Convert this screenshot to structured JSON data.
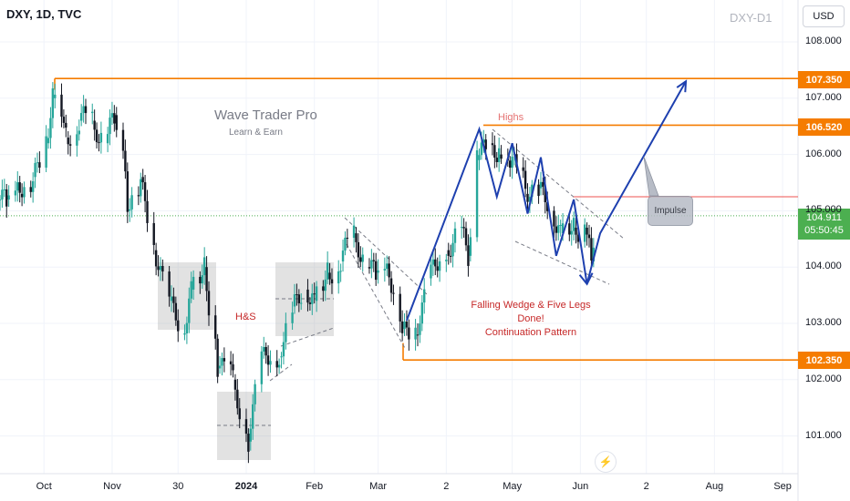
{
  "header": {
    "symbol": "DXY, 1D, TVC",
    "watermark": "DXY-D1",
    "currency_button": "USD"
  },
  "branding": {
    "title": "Wave Trader Pro",
    "subtitle": "Learn & Earn"
  },
  "annotations": {
    "hs": "H&S",
    "highs": "Highs",
    "pattern_line1": "Falling Wedge & Five Legs Done!",
    "pattern_line2": "Continuation Pattern",
    "impulse": "Impulse"
  },
  "current_price": {
    "value": "104.911",
    "countdown": "05:50:45"
  },
  "price_labels": [
    {
      "value": "107.350",
      "color": "#f57c00"
    },
    {
      "value": "106.520",
      "color": "#f57c00"
    },
    {
      "value": "102.350",
      "color": "#f57c00"
    }
  ],
  "colors": {
    "up": "#26a69a",
    "down": "#131722",
    "level": "#f57c00",
    "wave": "#1e40af",
    "current": "#4caf50",
    "resistance": "#ef5350"
  },
  "chart_data": {
    "type": "candlestick",
    "title": "DXY, 1D, TVC",
    "ylim": [
      100.4,
      108.5
    ],
    "y_ticks": [
      101,
      102,
      103,
      104,
      105,
      106,
      107,
      108
    ],
    "y_tick_labels": [
      "101.000",
      "102.000",
      "103.000",
      "104.000",
      "105.000",
      "106.000",
      "107.000",
      "108.000"
    ],
    "x_tick_labels": [
      "Oct",
      "Nov",
      "30",
      "2024",
      "Feb",
      "Mar",
      "2",
      "May",
      "Jun",
      "2",
      "Aug",
      "Sep"
    ],
    "x_tick_bold": [
      false,
      false,
      false,
      true,
      false,
      false,
      false,
      false,
      false,
      false,
      false,
      false
    ],
    "grid": true,
    "levels": [
      {
        "value": 107.35,
        "label": "107.350"
      },
      {
        "value": 106.52,
        "label": "106.520"
      },
      {
        "value": 102.35,
        "label": "102.350"
      }
    ],
    "current_price": 104.911,
    "wave_path": [
      {
        "date": "2024-03-14",
        "price": 103.05
      },
      {
        "date": "2024-04-16",
        "price": 106.45
      },
      {
        "date": "2024-04-24",
        "price": 105.25
      },
      {
        "date": "2024-05-01",
        "price": 106.2
      },
      {
        "date": "2024-05-08",
        "price": 104.95
      },
      {
        "date": "2024-05-14",
        "price": 105.95
      },
      {
        "date": "2024-05-21",
        "price": 104.2
      },
      {
        "date": "2024-05-29",
        "price": 105.2
      },
      {
        "date": "2024-06-04",
        "price": 103.7
      },
      {
        "date": "2024-06-10",
        "price": 104.6
      },
      {
        "date": "2024-07-19",
        "price": 107.3
      }
    ],
    "series_close": [
      [
        "2023-09-11",
        105.2
      ],
      [
        "2023-09-15",
        105.3
      ],
      [
        "2023-09-21",
        105.6
      ],
      [
        "2023-09-27",
        106.2
      ],
      [
        "2023-10-03",
        107.0
      ],
      [
        "2023-10-06",
        106.3
      ],
      [
        "2023-10-12",
        106.6
      ],
      [
        "2023-10-18",
        106.6
      ],
      [
        "2023-10-24",
        106.2
      ],
      [
        "2023-10-30",
        106.7
      ],
      [
        "2023-11-03",
        105.0
      ],
      [
        "2023-11-09",
        105.6
      ],
      [
        "2023-11-15",
        104.3
      ],
      [
        "2023-11-21",
        103.4
      ],
      [
        "2023-11-28",
        102.8
      ],
      [
        "2023-12-04",
        103.6
      ],
      [
        "2023-12-08",
        104.0
      ],
      [
        "2023-12-14",
        102.2
      ],
      [
        "2023-12-20",
        102.0
      ],
      [
        "2023-12-27",
        100.9
      ],
      [
        "2024-01-03",
        102.5
      ],
      [
        "2024-01-09",
        102.4
      ],
      [
        "2024-01-17",
        103.3
      ],
      [
        "2024-01-23",
        103.6
      ],
      [
        "2024-01-29",
        103.4
      ],
      [
        "2024-02-02",
        103.9
      ],
      [
        "2024-02-08",
        104.1
      ],
      [
        "2024-02-14",
        104.6
      ],
      [
        "2024-02-20",
        104.0
      ],
      [
        "2024-02-26",
        103.9
      ],
      [
        "2024-03-01",
        103.8
      ],
      [
        "2024-03-07",
        102.9
      ],
      [
        "2024-03-13",
        102.8
      ],
      [
        "2024-03-19",
        103.8
      ],
      [
        "2024-03-25",
        104.3
      ],
      [
        "2024-04-02",
        104.7
      ],
      [
        "2024-04-08",
        104.2
      ],
      [
        "2024-04-12",
        105.9
      ],
      [
        "2024-04-16",
        106.2
      ],
      [
        "2024-04-22",
        106.0
      ],
      [
        "2024-04-26",
        106.0
      ],
      [
        "2024-05-02",
        105.3
      ],
      [
        "2024-05-08",
        105.4
      ],
      [
        "2024-05-14",
        105.0
      ],
      [
        "2024-05-20",
        104.6
      ],
      [
        "2024-05-24",
        104.7
      ],
      [
        "2024-05-30",
        104.7
      ],
      [
        "2024-06-04",
        104.1
      ],
      [
        "2024-06-07",
        104.9
      ]
    ]
  }
}
